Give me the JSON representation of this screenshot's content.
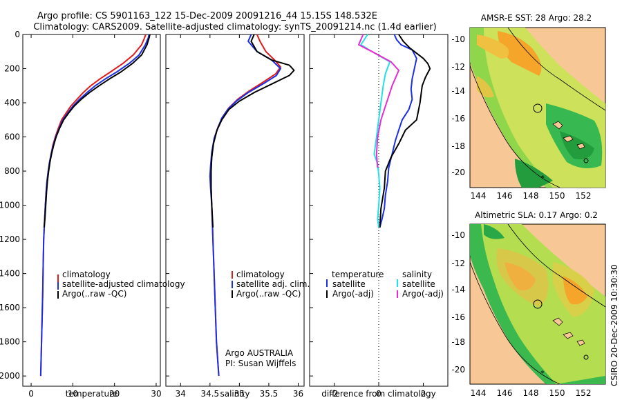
{
  "header": {
    "line1": "Argo profile: CS 5901163_122 15-Dec-2009 20091216_44 15.15S 148.532E",
    "line2": "Climatology: CARS2009. Satellite-adjusted climatology: synTS_20091214.nc (1.4d earlier)"
  },
  "colors": {
    "climatology": "#e11a1a",
    "satellite": "#1a2ee6",
    "argo": "#000000",
    "sat_diff": "#22e0e8",
    "argo_sal_diff": "#e62bd0",
    "land": "#f7c896"
  },
  "chart_data": [
    {
      "type": "line",
      "id": "temperature",
      "xlabel": "temperature",
      "ylabel": "",
      "xlim": [
        -2,
        31
      ],
      "ylim": [
        2060,
        0
      ],
      "xticks": [
        0,
        10,
        20,
        30
      ],
      "yticks": [
        0,
        200,
        400,
        600,
        800,
        1000,
        1200,
        1400,
        1600,
        1800,
        2000
      ],
      "legend": [
        "climatology",
        "satellite-adjusted climatology",
        "Argo(..raw -QC)"
      ],
      "series": [
        {
          "name": "climatology",
          "color": "#e11a1a",
          "x": [
            27.5,
            27.2,
            26.5,
            24.5,
            22.0,
            19.0,
            16.5,
            14.3,
            12.5,
            11.0,
            9.5,
            8.4,
            7.3,
            6.5,
            5.8,
            5.2,
            4.8,
            4.4,
            4.1,
            3.8,
            3.6,
            3.4,
            3.2,
            3.0,
            2.9,
            2.8,
            2.7,
            2.6,
            2.5,
            2.4,
            2.3
          ],
          "depth": [
            0,
            20,
            60,
            120,
            170,
            220,
            260,
            300,
            340,
            380,
            420,
            460,
            500,
            550,
            600,
            650,
            700,
            750,
            800,
            860,
            920,
            1000,
            1100,
            1200,
            1350,
            1500,
            1600,
            1700,
            1800,
            1900,
            2000
          ]
        },
        {
          "name": "satellite-adjusted climatology",
          "color": "#1a2ee6",
          "x": [
            28.3,
            28.1,
            27.4,
            25.9,
            23.5,
            20.5,
            17.8,
            15.4,
            13.4,
            11.6,
            10.0,
            8.8,
            7.6,
            6.7,
            5.9,
            5.3,
            4.8,
            4.4,
            4.1,
            3.8,
            3.6,
            3.4,
            3.2,
            3.0,
            2.9,
            2.8,
            2.7,
            2.6,
            2.5,
            2.4,
            2.3
          ],
          "depth": [
            0,
            20,
            60,
            120,
            170,
            220,
            260,
            300,
            340,
            380,
            420,
            460,
            500,
            550,
            600,
            650,
            700,
            750,
            800,
            860,
            920,
            1000,
            1100,
            1200,
            1350,
            1500,
            1600,
            1700,
            1800,
            1900,
            2000
          ]
        },
        {
          "name": "Argo(..raw -QC)",
          "color": "#000000",
          "x": [
            28.5,
            28.3,
            27.8,
            26.5,
            24.3,
            21.5,
            18.8,
            16.3,
            14.0,
            12.0,
            10.3,
            9.0,
            7.8,
            6.8,
            6.0,
            5.4,
            4.9,
            4.5,
            4.2,
            3.9,
            3.7,
            3.5,
            3.3,
            3.1
          ],
          "depth": [
            0,
            20,
            60,
            120,
            170,
            220,
            260,
            300,
            340,
            380,
            420,
            460,
            500,
            550,
            600,
            650,
            700,
            750,
            800,
            860,
            920,
            1000,
            1080,
            1130
          ]
        }
      ]
    },
    {
      "type": "line",
      "id": "salinity",
      "xlabel": "salinity",
      "xlim": [
        33.75,
        36.1
      ],
      "ylim": [
        2060,
        0
      ],
      "xticks": [
        34,
        34.5,
        35,
        35.5,
        36
      ],
      "legend": [
        "climatology",
        "satellite adj. clim.",
        "Argo(..raw -QC)"
      ],
      "series": [
        {
          "name": "climatology",
          "color": "#e11a1a",
          "x": [
            35.3,
            35.35,
            35.45,
            35.6,
            35.7,
            35.62,
            35.4,
            35.17,
            34.97,
            34.82,
            34.72,
            34.64,
            34.58,
            34.54,
            34.52,
            34.51,
            34.52,
            34.53,
            34.55,
            34.57,
            34.59,
            34.61,
            34.63,
            34.65
          ],
          "depth": [
            0,
            40,
            100,
            150,
            190,
            230,
            280,
            330,
            380,
            430,
            480,
            540,
            600,
            680,
            760,
            820,
            900,
            1000,
            1200,
            1400,
            1600,
            1800,
            1900,
            2000
          ]
        },
        {
          "name": "satellite adj. clim.",
          "color": "#1a2ee6",
          "x": [
            35.2,
            35.15,
            35.3,
            35.55,
            35.7,
            35.63,
            35.4,
            35.15,
            34.95,
            34.8,
            34.7,
            34.63,
            34.57,
            34.53,
            34.51,
            34.5,
            34.51,
            34.53,
            34.55,
            34.57,
            34.59,
            34.61,
            34.63,
            34.65
          ],
          "depth": [
            0,
            40,
            100,
            150,
            200,
            240,
            290,
            340,
            390,
            440,
            490,
            550,
            610,
            690,
            770,
            830,
            900,
            1000,
            1200,
            1400,
            1600,
            1800,
            1900,
            2000
          ]
        },
        {
          "name": "Argo(..raw -QC)",
          "color": "#000000",
          "x": [
            35.25,
            35.2,
            35.3,
            35.55,
            35.85,
            35.93,
            35.85,
            35.55,
            35.25,
            35.0,
            34.82,
            34.7,
            34.62,
            34.56,
            34.53,
            34.52,
            34.52,
            34.53,
            34.55
          ],
          "depth": [
            0,
            40,
            100,
            150,
            180,
            210,
            240,
            290,
            340,
            390,
            440,
            500,
            560,
            640,
            720,
            800,
            900,
            1000,
            1130
          ]
        }
      ]
    },
    {
      "type": "line",
      "id": "difference",
      "xlabel": "difference from climatology",
      "xlim": [
        -3.1,
        3.1
      ],
      "ylim": [
        2060,
        0
      ],
      "xticks": [
        -2,
        0,
        2
      ],
      "legend": [
        {
          "header": "temperature",
          "items": [
            "satellite",
            "Argo(-adj)"
          ]
        },
        {
          "header": "salinity",
          "items": [
            "satellite",
            "Argo(-adj)"
          ]
        }
      ],
      "series": [
        {
          "name": "temperature satellite",
          "color": "#1a2ee6",
          "x": [
            0.7,
            0.8,
            1.0,
            1.5,
            1.7,
            1.6,
            1.5,
            1.45,
            1.5,
            1.35,
            1.05,
            0.9,
            0.75,
            0.6,
            0.45,
            0.4,
            0.3,
            0.25,
            0.15,
            0.05
          ],
          "depth": [
            0,
            30,
            60,
            90,
            140,
            200,
            260,
            320,
            380,
            440,
            500,
            560,
            620,
            700,
            780,
            860,
            940,
            1020,
            1080,
            1130
          ]
        },
        {
          "name": "temperature Argo(-adj)",
          "color": "#000000",
          "x": [
            0.9,
            1.1,
            1.4,
            1.7,
            2.0,
            2.2,
            2.3,
            2.1,
            1.95,
            1.85,
            1.7,
            1.2,
            0.9,
            0.55,
            0.3,
            0.25,
            0.1,
            0.05
          ],
          "depth": [
            0,
            40,
            80,
            110,
            140,
            170,
            200,
            250,
            300,
            400,
            500,
            560,
            640,
            720,
            800,
            900,
            1020,
            1130
          ]
        },
        {
          "name": "salinity satellite",
          "color": "#22e0e8",
          "x": [
            -0.5,
            -0.8,
            -0.3,
            0.5,
            0.3,
            0.2,
            0.1,
            0.0,
            -0.1,
            -0.2,
            -0.05,
            0.0,
            0.05,
            0.0,
            -0.05,
            0.0
          ],
          "depth": [
            0,
            60,
            100,
            160,
            230,
            300,
            400,
            500,
            600,
            700,
            760,
            820,
            900,
            1000,
            1080,
            1130
          ]
        },
        {
          "name": "salinity Argo(-adj)",
          "color": "#e62bd0",
          "x": [
            -0.7,
            -0.9,
            -0.3,
            0.55,
            0.9,
            0.6,
            0.35,
            0.1,
            -0.05,
            -0.1,
            -0.05
          ],
          "depth": [
            0,
            60,
            100,
            160,
            210,
            300,
            400,
            500,
            600,
            700,
            780
          ]
        }
      ]
    }
  ],
  "maps": [
    {
      "title": "AMSR-E SST: 28 Argo: 28.2",
      "x_ticks": [
        "144",
        "146",
        "148",
        "150",
        "152"
      ],
      "y_ticks": [
        "-10",
        "-12",
        "-14",
        "-16",
        "-18",
        "-20"
      ]
    },
    {
      "title": "Altimetric SLA: 0.17 Argo: 0.2",
      "x_ticks": [
        "144",
        "146",
        "148",
        "150",
        "152"
      ],
      "y_ticks": [
        "-10",
        "-12",
        "-14",
        "-16",
        "-18",
        "-20"
      ]
    }
  ],
  "notes": {
    "org": "Argo AUSTRALIA",
    "pi": "PI: Susan Wijffels",
    "stamp": "CSIRO 20-Dec-2009 10:30:30"
  }
}
